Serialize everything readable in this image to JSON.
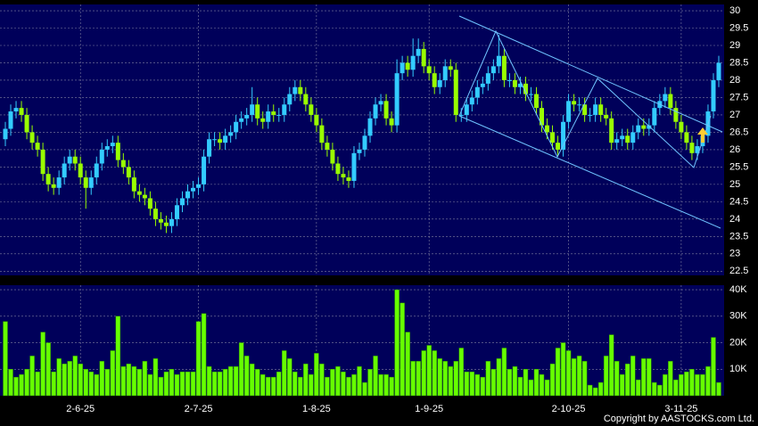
{
  "chart_data": {
    "type": "candlestick",
    "up_color": "#33ccff",
    "down_color": "#99ff00",
    "volume_color": "#66ff00",
    "grid": true,
    "ylim": [
      22.38,
      30.18
    ],
    "yticks": [
      30,
      29.5,
      29,
      28.5,
      28,
      27.5,
      27,
      26.5,
      26,
      25.5,
      25,
      24.5,
      24,
      23.5,
      23,
      22.5
    ],
    "categories": [
      null,
      null,
      null,
      null,
      null,
      null,
      null,
      null,
      null,
      null,
      null,
      null,
      null,
      null,
      "2-6-25",
      null,
      null,
      null,
      null,
      null,
      null,
      null,
      null,
      null,
      null,
      null,
      null,
      null,
      null,
      null,
      null,
      null,
      null,
      null,
      null,
      null,
      "2-7-25",
      null,
      null,
      null,
      null,
      null,
      null,
      null,
      null,
      null,
      null,
      null,
      null,
      null,
      null,
      null,
      null,
      null,
      null,
      null,
      null,
      null,
      "1-8-25",
      null,
      null,
      null,
      null,
      null,
      null,
      null,
      null,
      null,
      null,
      null,
      null,
      null,
      null,
      null,
      null,
      null,
      null,
      null,
      null,
      "1-9-25",
      null,
      null,
      null,
      null,
      null,
      null,
      null,
      null,
      null,
      null,
      null,
      null,
      null,
      null,
      null,
      null,
      null,
      null,
      null,
      null,
      null,
      null,
      null,
      null,
      null,
      "2-10-25",
      null,
      null,
      null,
      null,
      null,
      null,
      null,
      null,
      null,
      null,
      null,
      null,
      null,
      null,
      null,
      null,
      null,
      null,
      null,
      null,
      "3-11-25",
      null,
      null,
      null,
      null,
      null,
      null,
      null
    ],
    "open": [
      26.3,
      26.6,
      27.1,
      27.2,
      27.0,
      26.5,
      26.2,
      26.0,
      25.3,
      25.0,
      24.9,
      25.2,
      25.6,
      25.8,
      25.6,
      25.2,
      24.9,
      25.2,
      25.6,
      26.0,
      26.1,
      26.2,
      25.7,
      25.5,
      25.2,
      24.8,
      24.7,
      24.6,
      24.3,
      24.0,
      23.9,
      23.8,
      24.0,
      24.4,
      24.6,
      24.8,
      24.9,
      25.0,
      25.8,
      26.3,
      26.3,
      26.2,
      26.4,
      26.5,
      26.8,
      26.9,
      27.0,
      27.3,
      26.9,
      26.8,
      27.1,
      27.0,
      27.0,
      27.3,
      27.6,
      27.8,
      27.6,
      27.3,
      27.0,
      26.7,
      26.2,
      26.0,
      25.6,
      25.3,
      25.2,
      25.1,
      25.9,
      26.0,
      26.4,
      26.9,
      27.3,
      27.4,
      26.9,
      26.7,
      28.2,
      28.5,
      28.3,
      28.7,
      28.9,
      28.4,
      28.2,
      27.8,
      28.0,
      28.4,
      28.3,
      27.0,
      27.0,
      27.3,
      27.5,
      27.8,
      27.9,
      28.2,
      28.4,
      28.7,
      28.0,
      28.0,
      27.8,
      27.9,
      27.6,
      27.6,
      27.2,
      26.7,
      26.5,
      26.2,
      26.0,
      26.8,
      27.4,
      27.3,
      27.3,
      27.0,
      27.0,
      27.3,
      27.0,
      26.9,
      26.2,
      26.3,
      26.4,
      26.2,
      26.5,
      26.7,
      26.6,
      26.7,
      27.2,
      27.4,
      27.6,
      27.2,
      26.8,
      26.5,
      26.2,
      25.9,
      26.1,
      26.4,
      27.1,
      28.0
    ],
    "high": [
      26.8,
      27.3,
      27.4,
      27.4,
      27.2,
      26.7,
      26.4,
      26.2,
      25.5,
      25.2,
      25.4,
      25.8,
      26.0,
      26.0,
      25.8,
      25.4,
      25.4,
      25.8,
      26.2,
      26.3,
      26.4,
      26.4,
      25.9,
      25.7,
      25.4,
      25.0,
      24.9,
      24.8,
      24.5,
      24.2,
      24.1,
      24.2,
      24.6,
      24.8,
      25.0,
      25.1,
      25.2,
      26.0,
      26.5,
      26.5,
      26.5,
      26.6,
      26.7,
      27.0,
      27.1,
      27.2,
      27.8,
      27.5,
      27.1,
      27.3,
      27.3,
      27.2,
      27.5,
      27.8,
      28.0,
      28.0,
      27.8,
      27.5,
      27.2,
      26.9,
      26.4,
      26.2,
      25.8,
      25.5,
      25.4,
      26.1,
      26.2,
      26.6,
      27.1,
      27.5,
      27.6,
      27.6,
      27.1,
      28.6,
      28.7,
      28.7,
      29.2,
      29.2,
      29.1,
      28.6,
      28.4,
      28.2,
      28.6,
      28.6,
      28.5,
      27.2,
      27.5,
      27.7,
      28.0,
      28.1,
      28.4,
      28.6,
      29.3,
      28.9,
      28.2,
      28.2,
      28.1,
      28.1,
      27.8,
      27.8,
      27.4,
      26.9,
      26.7,
      26.4,
      27.0,
      27.6,
      27.6,
      27.5,
      27.5,
      27.2,
      27.5,
      27.5,
      27.2,
      27.1,
      26.5,
      26.6,
      26.6,
      26.7,
      26.9,
      26.9,
      26.9,
      27.4,
      27.6,
      27.8,
      27.8,
      27.4,
      27.0,
      26.7,
      26.4,
      26.3,
      26.6,
      27.3,
      28.2,
      28.7
    ],
    "low": [
      26.1,
      26.4,
      26.9,
      26.8,
      26.3,
      26.0,
      25.8,
      25.1,
      24.8,
      24.7,
      24.7,
      25.0,
      25.4,
      25.4,
      25.0,
      24.3,
      24.7,
      25.0,
      25.4,
      25.8,
      25.9,
      25.5,
      25.3,
      25.0,
      24.6,
      24.5,
      24.4,
      24.1,
      23.8,
      23.7,
      23.6,
      23.6,
      23.8,
      24.2,
      24.4,
      24.6,
      24.7,
      24.8,
      25.6,
      26.1,
      26.0,
      26.0,
      26.2,
      26.3,
      26.6,
      26.7,
      26.8,
      26.7,
      26.6,
      26.6,
      26.8,
      26.8,
      26.8,
      27.1,
      27.4,
      27.4,
      27.1,
      26.8,
      26.5,
      26.0,
      25.8,
      25.4,
      25.1,
      25.0,
      24.9,
      24.9,
      25.7,
      25.8,
      26.2,
      26.7,
      27.1,
      26.7,
      26.5,
      26.5,
      28.0,
      28.1,
      28.1,
      28.5,
      28.2,
      28.0,
      27.6,
      27.6,
      27.8,
      28.1,
      26.8,
      26.8,
      26.8,
      27.1,
      27.3,
      27.6,
      27.7,
      28.0,
      28.2,
      27.8,
      27.8,
      27.6,
      27.6,
      27.4,
      27.4,
      27.0,
      26.5,
      26.3,
      26.0,
      25.8,
      25.8,
      26.6,
      27.1,
      27.1,
      26.8,
      26.8,
      26.8,
      26.8,
      26.7,
      26.0,
      26.0,
      26.1,
      26.0,
      26.0,
      26.3,
      26.4,
      26.4,
      26.5,
      27.0,
      27.2,
      27.0,
      26.6,
      26.3,
      26.0,
      25.7,
      25.7,
      25.9,
      26.2,
      26.9,
      27.8
    ],
    "close": [
      26.6,
      27.1,
      27.2,
      27.0,
      26.5,
      26.2,
      26.0,
      25.3,
      25.0,
      24.9,
      25.2,
      25.6,
      25.8,
      25.6,
      25.2,
      24.9,
      25.2,
      25.6,
      26.0,
      26.1,
      26.2,
      25.7,
      25.5,
      25.2,
      24.8,
      24.7,
      24.6,
      24.3,
      24.0,
      23.9,
      23.8,
      24.0,
      24.4,
      24.6,
      24.8,
      24.9,
      25.0,
      25.8,
      26.3,
      26.3,
      26.2,
      26.4,
      26.5,
      26.8,
      26.9,
      27.0,
      27.3,
      26.9,
      26.8,
      27.1,
      27.0,
      27.0,
      27.3,
      27.6,
      27.8,
      27.6,
      27.3,
      27.0,
      26.7,
      26.2,
      26.0,
      25.6,
      25.3,
      25.2,
      25.1,
      25.9,
      26.0,
      26.4,
      26.9,
      27.3,
      27.4,
      26.9,
      26.7,
      28.2,
      28.5,
      28.3,
      28.7,
      28.9,
      28.4,
      28.2,
      27.8,
      28.0,
      28.4,
      28.3,
      27.0,
      27.0,
      27.3,
      27.5,
      27.8,
      27.9,
      28.2,
      28.4,
      28.7,
      28.0,
      28.0,
      27.8,
      27.9,
      27.6,
      27.6,
      27.2,
      26.7,
      26.5,
      26.2,
      26.0,
      26.8,
      27.4,
      27.3,
      27.3,
      27.0,
      27.0,
      27.3,
      27.0,
      26.9,
      26.2,
      26.3,
      26.4,
      26.2,
      26.5,
      26.7,
      26.6,
      26.7,
      27.2,
      27.4,
      27.6,
      27.2,
      26.8,
      26.5,
      26.2,
      25.9,
      26.1,
      26.4,
      27.1,
      28.0,
      28.5
    ],
    "volume": {
      "ylim": [
        0,
        41700
      ],
      "yticks": [
        {
          "value": 40000,
          "label": "40K"
        },
        {
          "value": 30000,
          "label": "30K"
        },
        {
          "value": 20000,
          "label": "20K"
        },
        {
          "value": 10000,
          "label": "10K"
        }
      ],
      "values": [
        28000,
        10000,
        7000,
        8000,
        10000,
        15000,
        9000,
        24000,
        20000,
        9000,
        14000,
        12000,
        13000,
        15000,
        12000,
        10000,
        9000,
        8000,
        13000,
        10000,
        17000,
        30000,
        11000,
        12000,
        11000,
        10000,
        13000,
        8000,
        14000,
        7000,
        9000,
        10000,
        8000,
        9000,
        9000,
        9000,
        28000,
        31000,
        11000,
        9000,
        9000,
        10000,
        11000,
        11000,
        20000,
        15000,
        12000,
        10000,
        8000,
        7000,
        7000,
        9000,
        17000,
        14000,
        9000,
        7000,
        12000,
        8000,
        16000,
        12000,
        7000,
        10000,
        11000,
        9000,
        7000,
        8000,
        11000,
        5000,
        10000,
        15000,
        8000,
        8000,
        7000,
        40000,
        35000,
        24000,
        13000,
        13000,
        17000,
        19000,
        17000,
        14000,
        13000,
        11000,
        13000,
        18000,
        9000,
        9000,
        8000,
        7000,
        13000,
        10000,
        14000,
        18000,
        10000,
        11000,
        7000,
        10000,
        6000,
        10000,
        8000,
        6000,
        12000,
        18000,
        20000,
        17000,
        14000,
        15000,
        13000,
        4000,
        3000,
        5000,
        15000,
        23000,
        13000,
        8000,
        12000,
        15000,
        6000,
        14000,
        14000,
        5000,
        4000,
        8000,
        13000,
        6000,
        8000,
        9000,
        10000,
        8000,
        8000,
        11000,
        22000,
        5000
      ]
    }
  },
  "footer": "Copyright by AASTOCKS.com Ltd."
}
